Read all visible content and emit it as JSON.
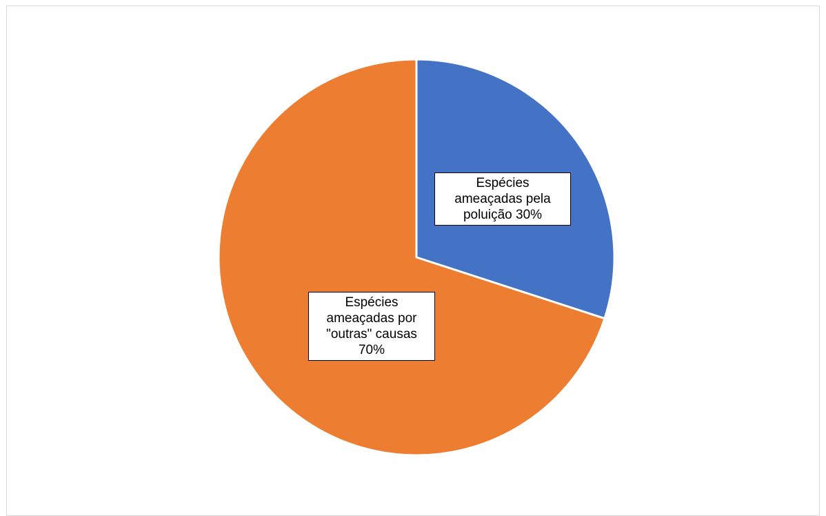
{
  "chart_data": {
    "type": "pie",
    "title": "",
    "legend": "none",
    "slices": [
      {
        "label": "Espécies ameaçadas pela poluição 30%",
        "category": "Espécies ameaçadas pela poluição",
        "value": 30,
        "color": "#4472c4"
      },
      {
        "label": "Espécies ameaçadas por \"outras\" causas 70%",
        "category": "Espécies ameaçadas por \"outras\" causas",
        "value": 70,
        "color": "#ed7d31"
      }
    ],
    "data_labels": [
      "Espécies\nameaçadas pela\npoluição 30%",
      "Espécies\nameaçadas por\n\"outras\" causas\n70%"
    ]
  }
}
